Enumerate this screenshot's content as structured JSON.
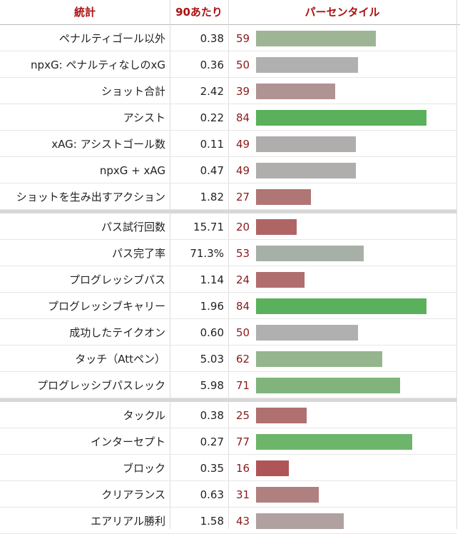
{
  "header": {
    "columns": [
      "統計",
      "90あたり",
      "パーセンタイル"
    ]
  },
  "groups": [
    {
      "rows": [
        {
          "stat": "ペナルティゴール以外",
          "per90": "0.38",
          "percentile": 59,
          "color": "#9db595"
        },
        {
          "stat": "npxG: ペナルティなしのxG",
          "per90": "0.36",
          "percentile": 50,
          "color": "#b0b0b0"
        },
        {
          "stat": "ショット合計",
          "per90": "2.42",
          "percentile": 39,
          "color": "#b09393"
        },
        {
          "stat": "アシスト",
          "per90": "0.22",
          "percentile": 84,
          "color": "#5bb05b"
        },
        {
          "stat": "xAG: アシストゴール数",
          "per90": "0.11",
          "percentile": 49,
          "color": "#b0adad"
        },
        {
          "stat": "npxG + xAG",
          "per90": "0.47",
          "percentile": 49,
          "color": "#b0adad"
        },
        {
          "stat": "ショットを生み出すアクション",
          "per90": "1.82",
          "percentile": 27,
          "color": "#b07575"
        }
      ]
    },
    {
      "rows": [
        {
          "stat": "パス試行回数",
          "per90": "15.71",
          "percentile": 20,
          "color": "#b06565"
        },
        {
          "stat": "パス完了率",
          "per90": "71.3%",
          "percentile": 53,
          "color": "#a7b0a6"
        },
        {
          "stat": "プログレッシブパス",
          "per90": "1.14",
          "percentile": 24,
          "color": "#b06d6d"
        },
        {
          "stat": "プログレッシブキャリー",
          "per90": "1.96",
          "percentile": 84,
          "color": "#5bb05b"
        },
        {
          "stat": "成功したテイクオン",
          "per90": "0.60",
          "percentile": 50,
          "color": "#b0b0b0"
        },
        {
          "stat": "タッチ（Attペン）",
          "per90": "5.03",
          "percentile": 62,
          "color": "#95b58e"
        },
        {
          "stat": "プログレッシブパスレック",
          "per90": "5.98",
          "percentile": 71,
          "color": "#80b47a"
        }
      ]
    },
    {
      "rows": [
        {
          "stat": "タックル",
          "per90": "0.38",
          "percentile": 25,
          "color": "#b07070"
        },
        {
          "stat": "インターセプト",
          "per90": "0.27",
          "percentile": 77,
          "color": "#6db56a"
        },
        {
          "stat": "ブロック",
          "per90": "0.35",
          "percentile": 16,
          "color": "#b05555"
        },
        {
          "stat": "クリアランス",
          "per90": "0.63",
          "percentile": 31,
          "color": "#b08080"
        },
        {
          "stat": "エアリアル勝利",
          "per90": "1.58",
          "percentile": 43,
          "color": "#b0a0a0"
        }
      ]
    }
  ]
}
